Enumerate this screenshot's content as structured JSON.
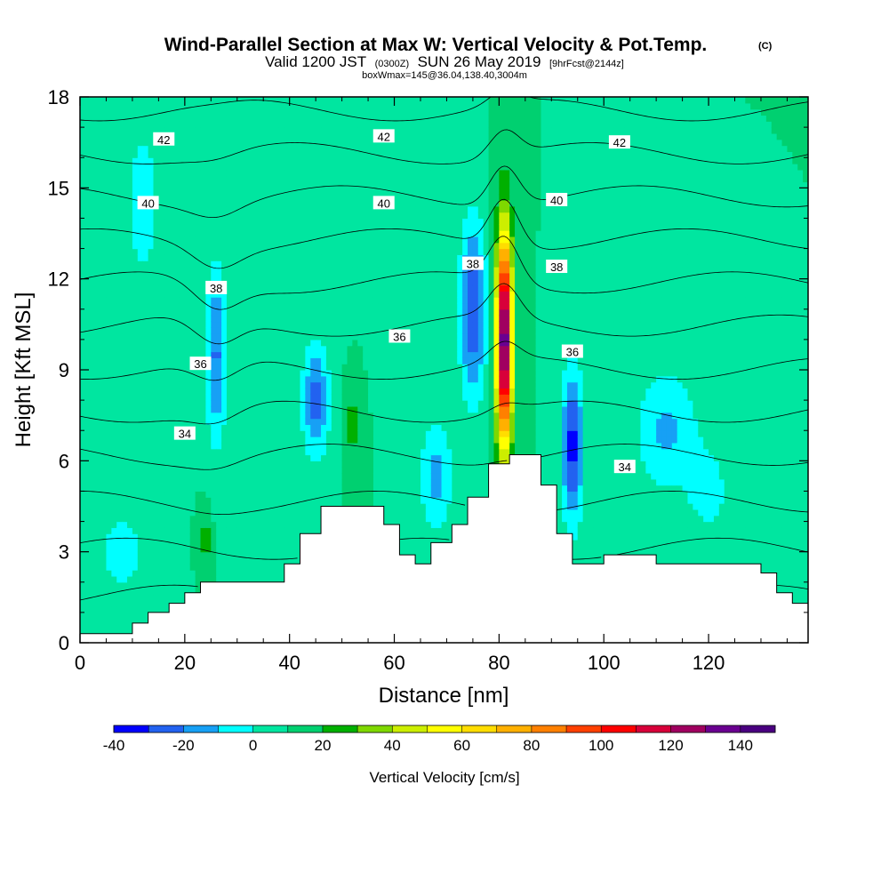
{
  "chart_data": {
    "type": "heatmap",
    "title": "Wind-Parallel Section at Max W: Vertical Velocity & Pot.Temp.",
    "copyright": "(C)",
    "valid_prefix": "Valid 1200 JST",
    "utc_time": "(0300Z)",
    "valid_date": "SUN 26 May 2019",
    "forecast_info": "[9hrFcst@2144z]",
    "box_info": "boxWmax=145@36.04,138.40,3004m",
    "xlabel": "Distance [nm]",
    "ylabel": "Height [Kft MSL]",
    "xlim": [
      0,
      139
    ],
    "ylim": [
      0,
      18
    ],
    "x_ticks": [
      0,
      20,
      40,
      60,
      80,
      100,
      120
    ],
    "y_ticks": [
      0,
      3,
      6,
      9,
      12,
      15,
      18
    ],
    "colorbar": {
      "label": "Vertical Velocity [cm/s]",
      "min": -40,
      "max": 150,
      "step": 10,
      "tick_values": [
        -40,
        -20,
        0,
        20,
        40,
        60,
        80,
        100,
        120,
        140
      ],
      "colors": [
        "#0000ff",
        "#2262f0",
        "#17a0f5",
        "#00ffff",
        "#00e6a0",
        "#00d070",
        "#00b000",
        "#7fd800",
        "#ccee00",
        "#ffff00",
        "#ffdd00",
        "#ffb000",
        "#ff8000",
        "#ff4000",
        "#ff0000",
        "#d8003a",
        "#a00060",
        "#6a0090",
        "#4a0080"
      ]
    },
    "background_value_cm_s": 10,
    "updrafts": [
      {
        "x_nm": 81,
        "center_kft": 10.0,
        "half_width_nm": 1.5,
        "half_height_kft": 3.5,
        "peak_cm_s": 145
      },
      {
        "x_nm": 52,
        "center_kft": 7.2,
        "half_width_nm": 1.2,
        "half_height_kft": 1.4,
        "peak_cm_s": 25
      },
      {
        "x_nm": 24,
        "center_kft": 3.4,
        "half_width_nm": 1.0,
        "half_height_kft": 1.0,
        "peak_cm_s": 25
      },
      {
        "x_nm": 47,
        "center_kft": 14.0,
        "half_width_nm": 5.0,
        "half_height_kft": 3.0,
        "peak_cm_s": 5
      }
    ],
    "downdrafts": [
      {
        "x_nm": 75,
        "center_kft": 11.0,
        "half_width_nm": 2.5,
        "half_height_kft": 3.0,
        "peak_cm_s": -30
      },
      {
        "x_nm": 94,
        "center_kft": 6.5,
        "half_width_nm": 2.0,
        "half_height_kft": 2.5,
        "peak_cm_s": -35
      },
      {
        "x_nm": 45,
        "center_kft": 8.0,
        "half_width_nm": 2.5,
        "half_height_kft": 1.8,
        "peak_cm_s": -25
      },
      {
        "x_nm": 26,
        "center_kft": 9.5,
        "half_width_nm": 2.0,
        "half_height_kft": 3.0,
        "peak_cm_s": -22
      },
      {
        "x_nm": 12,
        "center_kft": 14.5,
        "half_width_nm": 3.0,
        "half_height_kft": 2.5,
        "peak_cm_s": -8
      },
      {
        "x_nm": 68,
        "center_kft": 5.5,
        "half_width_nm": 3.0,
        "half_height_kft": 1.8,
        "peak_cm_s": -15
      },
      {
        "x_nm": 112,
        "center_kft": 7.0,
        "half_width_nm": 6.0,
        "half_height_kft": 2.0,
        "peak_cm_s": -12
      },
      {
        "x_nm": 120,
        "center_kft": 5.0,
        "half_width_nm": 4.0,
        "half_height_kft": 1.5,
        "peak_cm_s": -5
      },
      {
        "x_nm": 8,
        "center_kft": 3.0,
        "half_width_nm": 5.0,
        "half_height_kft": 1.5,
        "peak_cm_s": -5
      }
    ],
    "terrain": {
      "x_nm": [
        0,
        10,
        13,
        17,
        20,
        23,
        39,
        42,
        46,
        58,
        61,
        64,
        67,
        71,
        74,
        78,
        82,
        88,
        91,
        94,
        100,
        110,
        130,
        133,
        136,
        139
      ],
      "height_kft": [
        0.3,
        0.65,
        1.0,
        1.3,
        1.65,
        2.0,
        2.6,
        3.6,
        4.5,
        3.9,
        2.9,
        2.6,
        3.3,
        3.9,
        4.8,
        5.9,
        6.2,
        5.2,
        3.6,
        2.6,
        2.9,
        2.6,
        2.3,
        1.65,
        1.3,
        1.3
      ]
    },
    "theta_levels": [
      30,
      31,
      32,
      33,
      34,
      35,
      36,
      37,
      38,
      39,
      40,
      41,
      42,
      43
    ],
    "theta_labels": [
      {
        "value": "42",
        "x_nm": 16,
        "y_kft": 16.6
      },
      {
        "value": "42",
        "x_nm": 58,
        "y_kft": 16.7
      },
      {
        "value": "42",
        "x_nm": 103,
        "y_kft": 16.5
      },
      {
        "value": "40",
        "x_nm": 13,
        "y_kft": 14.5
      },
      {
        "value": "40",
        "x_nm": 58,
        "y_kft": 14.5
      },
      {
        "value": "40",
        "x_nm": 91,
        "y_kft": 14.6
      },
      {
        "value": "38",
        "x_nm": 26,
        "y_kft": 11.7
      },
      {
        "value": "38",
        "x_nm": 75,
        "y_kft": 12.5
      },
      {
        "value": "38",
        "x_nm": 91,
        "y_kft": 12.4
      },
      {
        "value": "36",
        "x_nm": 23,
        "y_kft": 9.2
      },
      {
        "value": "36",
        "x_nm": 61,
        "y_kft": 10.1
      },
      {
        "value": "36",
        "x_nm": 94,
        "y_kft": 9.6
      },
      {
        "value": "34",
        "x_nm": 20,
        "y_kft": 6.9
      },
      {
        "value": "34",
        "x_nm": 104,
        "y_kft": 5.8
      }
    ]
  }
}
